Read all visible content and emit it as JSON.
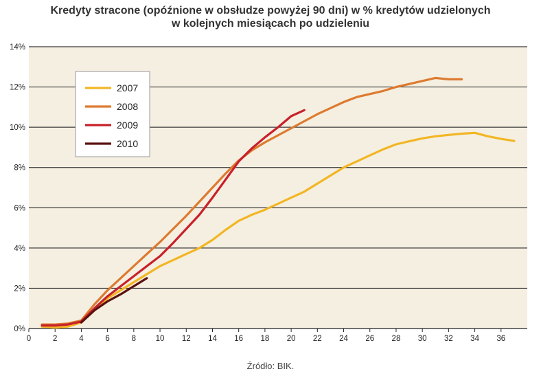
{
  "title_lines": [
    "Kredyty stracone (opóźnione w obsłudze powyżej 90 dni) w % kredytów udzielonych",
    "w kolejnych miesiącach po udzieleniu"
  ],
  "source": "Źródło: BIK.",
  "chart_data": {
    "type": "line",
    "xlabel": "",
    "ylabel": "",
    "xlim": [
      0,
      38
    ],
    "ylim": [
      0,
      14
    ],
    "x_ticks": [
      0,
      2,
      4,
      6,
      8,
      10,
      12,
      14,
      16,
      18,
      20,
      22,
      24,
      26,
      28,
      30,
      32,
      34,
      36
    ],
    "y_ticks": [
      0,
      2,
      4,
      6,
      8,
      10,
      12,
      14
    ],
    "y_tick_labels": [
      "0%",
      "2%",
      "4%",
      "6%",
      "8%",
      "10%",
      "12%",
      "14%"
    ],
    "grid": "horizontal",
    "legend_position": "top-left",
    "background": "#f5efe1",
    "series": [
      {
        "name": "2007",
        "color": "#f2b624",
        "x": [
          1,
          2,
          3,
          4,
          5,
          6,
          7,
          8,
          9,
          10,
          11,
          12,
          13,
          14,
          15,
          16,
          17,
          18,
          19,
          20,
          21,
          22,
          23,
          24,
          25,
          26,
          27,
          28,
          29,
          30,
          31,
          32,
          33,
          34,
          35,
          36,
          37
        ],
        "values": [
          0.1,
          0.05,
          0.1,
          0.3,
          0.9,
          1.5,
          1.9,
          2.3,
          2.7,
          3.1,
          3.4,
          3.7,
          4.0,
          4.4,
          4.9,
          5.35,
          5.65,
          5.9,
          6.2,
          6.5,
          6.8,
          7.2,
          7.6,
          8.0,
          8.3,
          8.6,
          8.9,
          9.15,
          9.3,
          9.45,
          9.55,
          9.62,
          9.68,
          9.72,
          9.55,
          9.42,
          9.32
        ]
      },
      {
        "name": "2008",
        "color": "#dd7a30",
        "x": [
          1,
          2,
          3,
          4,
          5,
          6,
          7,
          8,
          9,
          10,
          11,
          12,
          13,
          14,
          15,
          16,
          17,
          18,
          19,
          20,
          21,
          22,
          23,
          24,
          25,
          26,
          27,
          28,
          29,
          30,
          31,
          32,
          33
        ],
        "values": [
          0.2,
          0.2,
          0.25,
          0.4,
          1.2,
          1.9,
          2.5,
          3.1,
          3.7,
          4.3,
          4.95,
          5.6,
          6.3,
          7.0,
          7.7,
          8.35,
          8.85,
          9.25,
          9.6,
          9.95,
          10.3,
          10.65,
          10.95,
          11.25,
          11.5,
          11.65,
          11.8,
          12.0,
          12.15,
          12.3,
          12.45,
          12.38,
          12.38
        ]
      },
      {
        "name": "2009",
        "color": "#c8202a",
        "x": [
          1,
          2,
          3,
          4,
          5,
          6,
          7,
          8,
          9,
          10,
          11,
          12,
          13,
          14,
          15,
          16,
          17,
          18,
          19,
          20,
          21
        ],
        "values": [
          0.15,
          0.15,
          0.2,
          0.35,
          1.0,
          1.6,
          2.1,
          2.6,
          3.1,
          3.6,
          4.25,
          4.95,
          5.65,
          6.5,
          7.4,
          8.3,
          8.95,
          9.5,
          10.0,
          10.55,
          10.85
        ]
      },
      {
        "name": "2010",
        "color": "#5a1010",
        "x": [
          4,
          5,
          6,
          7,
          8,
          9
        ],
        "values": [
          0.3,
          0.9,
          1.35,
          1.7,
          2.1,
          2.5
        ]
      }
    ]
  }
}
